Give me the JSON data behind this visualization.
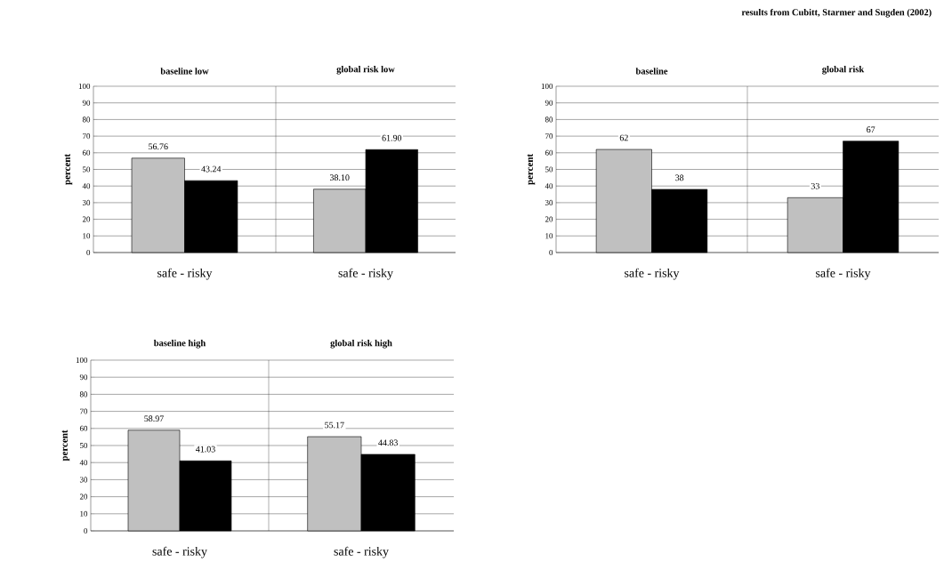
{
  "chart_data": [
    {
      "type": "bar",
      "title": "baseline low",
      "ylabel": "percent",
      "categories": [
        "safe - risky"
      ],
      "series": [
        {
          "color": "#c0c0c0",
          "values": [
            56.76
          ],
          "value_labels": [
            "56.76"
          ]
        },
        {
          "color": "#000000",
          "values": [
            43.24
          ],
          "value_labels": [
            "43.24"
          ]
        }
      ],
      "ylim": [
        0,
        100
      ],
      "yticks": [
        0,
        10,
        20,
        30,
        40,
        50,
        60,
        70,
        80,
        90,
        100
      ],
      "grid": "y"
    },
    {
      "type": "bar",
      "title": "global risk low",
      "categories": [
        "safe - risky"
      ],
      "series": [
        {
          "color": "#c0c0c0",
          "values": [
            38.1
          ],
          "value_labels": [
            "38.10"
          ]
        },
        {
          "color": "#000000",
          "values": [
            61.9
          ],
          "value_labels": [
            "61.90"
          ]
        }
      ],
      "ylim": [
        0,
        100
      ],
      "yticks": [
        0,
        10,
        20,
        30,
        40,
        50,
        60,
        70,
        80,
        90,
        100
      ],
      "grid": "y",
      "tick_labels": "x"
    },
    {
      "type": "bar",
      "title": "baseline",
      "ylabel": "percent",
      "annotations": [
        "results from Cubitt, Starmer and Sugden (2002)"
      ],
      "categories": [
        "safe - risky"
      ],
      "series": [
        {
          "color": "#c0c0c0",
          "values": [
            62
          ],
          "value_labels": [
            "62"
          ]
        },
        {
          "color": "#000000",
          "values": [
            38
          ],
          "value_labels": [
            "38"
          ]
        }
      ],
      "ylim": [
        0,
        100
      ],
      "yticks": [
        0,
        10,
        20,
        30,
        40,
        50,
        60,
        70,
        80,
        90,
        100
      ],
      "grid": "y"
    },
    {
      "type": "bar",
      "title": "global risk",
      "categories": [
        "safe - risky"
      ],
      "series": [
        {
          "color": "#c0c0c0",
          "values": [
            33
          ],
          "value_labels": [
            "33"
          ]
        },
        {
          "color": "#000000",
          "values": [
            67
          ],
          "value_labels": [
            "67"
          ]
        }
      ],
      "ylim": [
        0,
        100
      ],
      "yticks": [
        0,
        10,
        20,
        30,
        40,
        50,
        60,
        70,
        80,
        90,
        100
      ],
      "grid": "y",
      "tick_labels": "x"
    },
    {
      "type": "bar",
      "title": "baseline high",
      "ylabel": "percent",
      "categories": [
        "safe - risky"
      ],
      "series": [
        {
          "color": "#c0c0c0",
          "values": [
            58.97
          ],
          "value_labels": [
            "58.97"
          ]
        },
        {
          "color": "#000000",
          "values": [
            41.03
          ],
          "value_labels": [
            "41.03"
          ]
        }
      ],
      "ylim": [
        0,
        100
      ],
      "yticks": [
        0,
        10,
        20,
        30,
        40,
        50,
        60,
        70,
        80,
        90,
        100
      ],
      "grid": "y"
    },
    {
      "type": "bar",
      "title": "global risk high",
      "categories": [
        "safe - risky"
      ],
      "series": [
        {
          "color": "#c0c0c0",
          "values": [
            55.17
          ],
          "value_labels": [
            "55.17"
          ]
        },
        {
          "color": "#000000",
          "values": [
            44.83
          ],
          "value_labels": [
            "44.83"
          ]
        }
      ],
      "ylim": [
        0,
        100
      ],
      "yticks": [
        0,
        10,
        20,
        30,
        40,
        50,
        60,
        70,
        80,
        90,
        100
      ],
      "grid": "y",
      "tick_labels": "x"
    }
  ]
}
